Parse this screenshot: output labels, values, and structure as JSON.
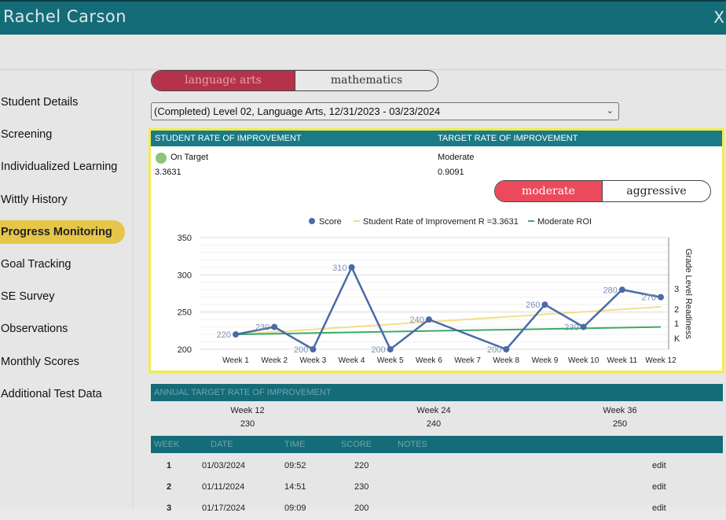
{
  "header": {
    "title": "Rachel Carson",
    "close_label": "X"
  },
  "sidebar": {
    "items": [
      {
        "label": "Student Details",
        "active": false
      },
      {
        "label": "Screening",
        "active": false
      },
      {
        "label": "Individualized Learning",
        "active": false
      },
      {
        "label": "Wittly History",
        "active": false
      },
      {
        "label": "Progress Monitoring",
        "active": true
      },
      {
        "label": "Goal Tracking",
        "active": false
      },
      {
        "label": "SE Survey",
        "active": false
      },
      {
        "label": "Observations",
        "active": false
      },
      {
        "label": "Monthly Scores",
        "active": false
      },
      {
        "label": "Additional Test Data",
        "active": false
      }
    ]
  },
  "subjects": {
    "selected": "language arts",
    "other": "mathematics"
  },
  "level_select": {
    "value": "(Completed) Level 02, Language Arts, 12/31/2023 - 03/23/2024"
  },
  "roi": {
    "student_header": "STUDENT RATE OF IMPROVEMENT",
    "target_header": "TARGET RATE OF IMPROVEMENT",
    "student_status": "On Target",
    "student_value": "3.3631",
    "target_label": "Moderate",
    "target_value": "0.9091",
    "rate_selected": "moderate",
    "rate_other": "aggressive"
  },
  "colors": {
    "score": "#4a6aa8",
    "student_roi": "#f0e08a",
    "moderate_roi": "#3aaa6a",
    "selected_toggle": "#ea4a5c",
    "active_nav": "#e6c649",
    "teal": "#146c78"
  },
  "chart_data": {
    "type": "line",
    "categories": [
      "Week 1",
      "Week 2",
      "Week 3",
      "Week 4",
      "Week 5",
      "Week 6",
      "Week 7",
      "Week 8",
      "Week 9",
      "Week 10",
      "Week 11",
      "Week 12"
    ],
    "series": [
      {
        "name": "Score",
        "points": [
          {
            "x": "Week 1",
            "y": 220
          },
          {
            "x": "Week 2",
            "y": 230
          },
          {
            "x": "Week 3",
            "y": 200
          },
          {
            "x": "Week 4",
            "y": 310
          },
          {
            "x": "Week 5",
            "y": 200
          },
          {
            "x": "Week 6",
            "y": 240
          },
          {
            "x": "Week 8",
            "y": 200
          },
          {
            "x": "Week 9",
            "y": 260
          },
          {
            "x": "Week 10",
            "y": 230
          },
          {
            "x": "Week 11",
            "y": 280
          },
          {
            "x": "Week 12",
            "y": 270
          }
        ]
      },
      {
        "name": "Student Rate of Improvement R =3.3631",
        "points": [
          {
            "x": "Week 1",
            "y": 220
          },
          {
            "x": "Week 12",
            "y": 257
          }
        ]
      },
      {
        "name": "Moderate ROI",
        "points": [
          {
            "x": "Week 1",
            "y": 220
          },
          {
            "x": "Week 12",
            "y": 230
          }
        ]
      }
    ],
    "data_labels": [
      "220",
      "230",
      "200",
      "310",
      "200",
      "240",
      "200",
      "260",
      "230",
      "280",
      "270"
    ],
    "yticks": [
      "200",
      "250",
      "300",
      "350"
    ],
    "ylim": [
      200,
      350
    ],
    "right_axis": {
      "label": "Grade Level Readiness",
      "ticks": [
        "K",
        "1",
        "2",
        "3"
      ]
    },
    "legend_position": "top",
    "grid": true
  },
  "annual": {
    "header": "ANNUAL TARGET RATE OF IMPROVEMENT",
    "targets": [
      {
        "week": "Week 12",
        "value": "230"
      },
      {
        "week": "Week 24",
        "value": "240"
      },
      {
        "week": "Week 36",
        "value": "250"
      }
    ]
  },
  "table": {
    "columns": [
      "WEEK",
      "DATE",
      "TIME",
      "SCORE",
      "NOTES"
    ],
    "rows": [
      {
        "week": "1",
        "date": "01/03/2024",
        "time": "09:52",
        "score": "220",
        "action": "edit"
      },
      {
        "week": "2",
        "date": "01/11/2024",
        "time": "14:51",
        "score": "230",
        "action": "edit"
      },
      {
        "week": "3",
        "date": "01/17/2024",
        "time": "09:09",
        "score": "200",
        "action": "edit"
      }
    ]
  }
}
